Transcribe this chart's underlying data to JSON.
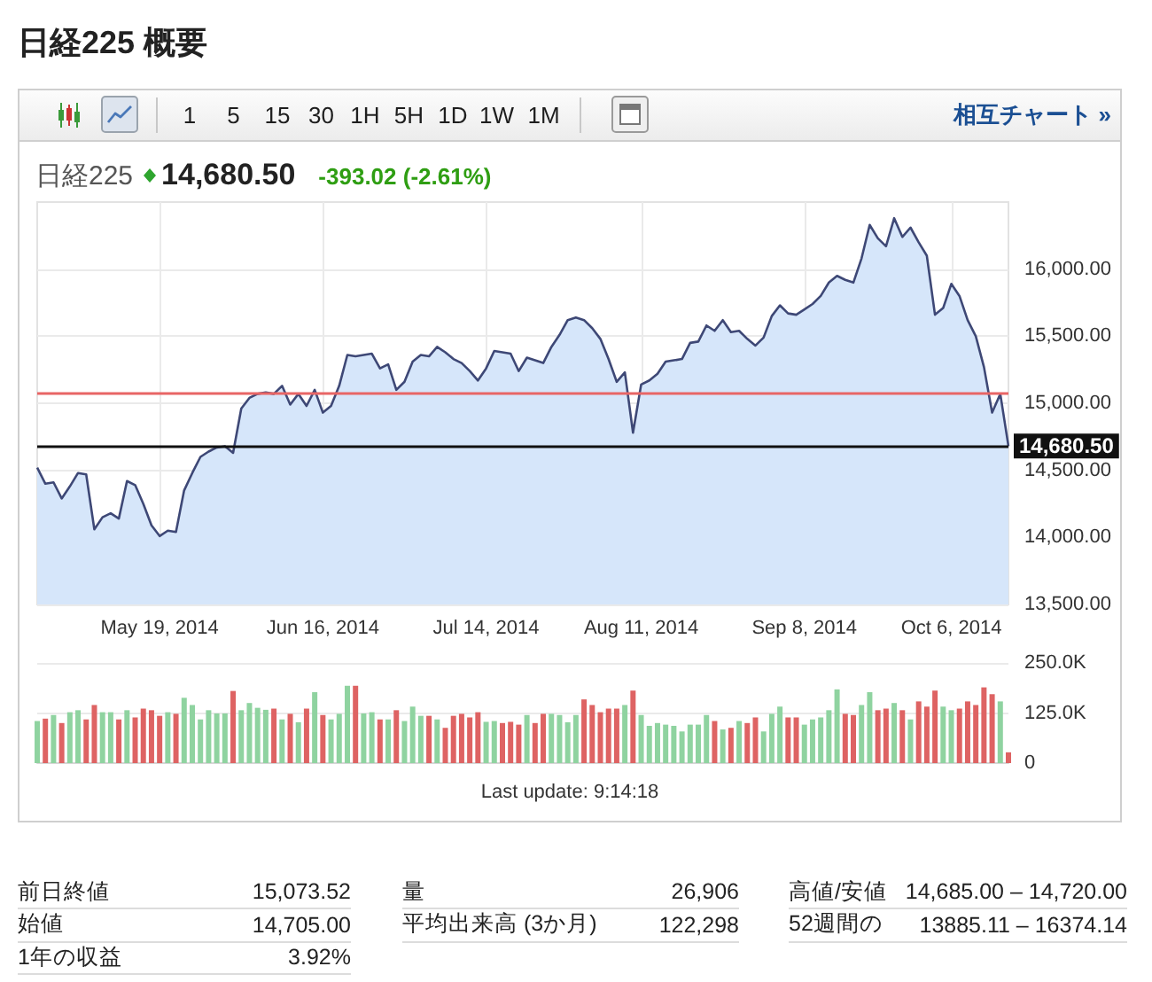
{
  "chart_data": [
    {
      "type": "other",
      "title": "日経225 概要",
      "annotations": [
        "1 5 15 30 1H 5H 1D 1W 1M",
        "相互チャート »"
      ]
    },
    {
      "type": "area",
      "title": "日経225",
      "annotations": [
        "14,680.50",
        "-393.02 (-2.61%)"
      ],
      "categories": [
        null,
        null,
        null,
        null,
        null,
        null,
        null,
        null,
        null,
        null,
        null,
        null,
        null,
        null,
        null,
        "May 19, 2014",
        null,
        null,
        null,
        null,
        null,
        null,
        null,
        null,
        null,
        null,
        null,
        null,
        null,
        null,
        null,
        null,
        null,
        null,
        null,
        "Jun 16, 2014",
        null,
        null,
        null,
        null,
        null,
        null,
        null,
        null,
        null,
        null,
        null,
        null,
        null,
        null,
        null,
        null,
        null,
        null,
        null,
        "Jul 14, 2014",
        null,
        null,
        null,
        null,
        null,
        null,
        null,
        null,
        null,
        null,
        null,
        null,
        null,
        null,
        null,
        null,
        null,
        null,
        "Aug 11, 2014",
        null,
        null,
        null,
        null,
        null,
        null,
        null,
        null,
        null,
        null,
        null,
        null,
        null,
        null,
        null,
        null,
        null,
        null,
        null,
        "Sep 8, 2014",
        null,
        null,
        null,
        null,
        null,
        null,
        null,
        null,
        null,
        null,
        null,
        null,
        null,
        null,
        null,
        null,
        null,
        "Oct 6, 2014",
        null,
        null,
        null,
        null,
        null,
        null,
        null
      ],
      "values": [
        14520,
        14400,
        14410,
        14290,
        14380,
        14480,
        14470,
        14060,
        14150,
        14180,
        14140,
        14420,
        14390,
        14250,
        14090,
        14010,
        14050,
        14040,
        14350,
        14480,
        14600,
        14640,
        14670,
        14680,
        14630,
        14960,
        15040,
        15070,
        15080,
        15070,
        15130,
        14990,
        15070,
        14980,
        15100,
        14930,
        14980,
        15130,
        15360,
        15350,
        15360,
        15370,
        15260,
        15290,
        15100,
        15160,
        15310,
        15360,
        15350,
        15420,
        15380,
        15330,
        15300,
        15240,
        15170,
        15260,
        15390,
        15380,
        15370,
        15240,
        15340,
        15320,
        15300,
        15420,
        15510,
        15620,
        15640,
        15620,
        15560,
        15480,
        15330,
        15160,
        15230,
        14780,
        15140,
        15170,
        15220,
        15310,
        15320,
        15330,
        15450,
        15460,
        15580,
        15540,
        15620,
        15530,
        15540,
        15480,
        15430,
        15490,
        15650,
        15730,
        15670,
        15660,
        15700,
        15740,
        15800,
        15900,
        15950,
        15920,
        15900,
        16080,
        16330,
        16230,
        16170,
        16380,
        16240,
        16310,
        16200,
        16100,
        15660,
        15710,
        15890,
        15800,
        15620,
        15500,
        15270,
        14930,
        15070,
        14680.5
      ],
      "color": "#d6e6fa",
      "ylim": [
        13500,
        16500
      ],
      "yticks": [
        {
          "value": 13500,
          "label": "13,500.00"
        },
        {
          "value": 14000,
          "label": "14,000.00"
        },
        {
          "value": 14500,
          "label": "14,500.00"
        },
        {
          "value": 15000,
          "label": "15,000.00"
        },
        {
          "value": 15500,
          "label": "15,500.00"
        },
        {
          "value": 16000,
          "label": "16,000.00"
        }
      ],
      "grid": true,
      "marker": "none",
      "ref_lines": [
        {
          "axis": "y",
          "value": 15073.52,
          "color": "#e86565"
        },
        {
          "axis": "y",
          "value": 14680.5,
          "label": "14,680.50",
          "color": "#111111"
        }
      ]
    },
    {
      "type": "bar",
      "categories": [
        null,
        null,
        null,
        null,
        null,
        null,
        null,
        null,
        null,
        null,
        null,
        null,
        null,
        null,
        null,
        null,
        null,
        null,
        null,
        null,
        null,
        null,
        null,
        null,
        null,
        null,
        null,
        null,
        null,
        null,
        null,
        null,
        null,
        null,
        null,
        null,
        null,
        null,
        null,
        null,
        null,
        null,
        null,
        null,
        null,
        null,
        null,
        null,
        null,
        null,
        null,
        null,
        null,
        null,
        null,
        null,
        null,
        null,
        null,
        null,
        null,
        null,
        null,
        null,
        null,
        null,
        null,
        null,
        null,
        null,
        null,
        null,
        null,
        null,
        null,
        null,
        null,
        null,
        null,
        null,
        null,
        null,
        null,
        null,
        null,
        null,
        null,
        null,
        null,
        null,
        null,
        null,
        null,
        null,
        null,
        null,
        null,
        null,
        null,
        null,
        null,
        null,
        null,
        null,
        null,
        null,
        null,
        null,
        null,
        null,
        null,
        null,
        null,
        null,
        null,
        null,
        null,
        null,
        null,
        null
      ],
      "values": [
        105000,
        111000,
        120000,
        100000,
        127000,
        132000,
        109000,
        145000,
        127000,
        127000,
        109000,
        132000,
        114000,
        136000,
        132000,
        118000,
        127000,
        123000,
        163000,
        145000,
        109000,
        132000,
        124000,
        124000,
        180000,
        132000,
        150000,
        138000,
        133000,
        136000,
        109000,
        123000,
        102000,
        136000,
        177000,
        120000,
        109000,
        123000,
        193000,
        193000,
        124000,
        127000,
        109000,
        109000,
        132000,
        105000,
        141000,
        118000,
        118000,
        109000,
        88000,
        118000,
        123000,
        114000,
        127000,
        103000,
        105000,
        100000,
        103000,
        96000,
        120000,
        100000,
        123000,
        123000,
        120000,
        102000,
        120000,
        159000,
        145000,
        127000,
        136000,
        136000,
        145000,
        181000,
        120000,
        93000,
        100000,
        96000,
        93000,
        79000,
        96000,
        96000,
        120000,
        105000,
        84000,
        88000,
        105000,
        100000,
        114000,
        79000,
        123000,
        141000,
        114000,
        114000,
        96000,
        109000,
        114000,
        132000,
        184000,
        123000,
        120000,
        145000,
        177000,
        132000,
        136000,
        150000,
        132000,
        109000,
        154000,
        141000,
        181000,
        141000,
        132000,
        136000,
        154000,
        145000,
        189000,
        172000,
        154000,
        26906
      ],
      "colors": [
        "#8fd3a0",
        "#de6363",
        "#8fd3a0",
        "#de6363",
        "#8fd3a0",
        "#8fd3a0",
        "#de6363",
        "#de6363",
        "#8fd3a0",
        "#8fd3a0",
        "#de6363",
        "#8fd3a0",
        "#de6363",
        "#de6363",
        "#de6363",
        "#de6363",
        "#8fd3a0",
        "#de6363",
        "#8fd3a0",
        "#8fd3a0",
        "#8fd3a0",
        "#8fd3a0",
        "#8fd3a0",
        "#8fd3a0",
        "#de6363",
        "#8fd3a0",
        "#8fd3a0",
        "#8fd3a0",
        "#8fd3a0",
        "#de6363",
        "#8fd3a0",
        "#de6363",
        "#8fd3a0",
        "#de6363",
        "#8fd3a0",
        "#de6363",
        "#8fd3a0",
        "#8fd3a0",
        "#8fd3a0",
        "#de6363",
        "#8fd3a0",
        "#8fd3a0",
        "#de6363",
        "#8fd3a0",
        "#de6363",
        "#8fd3a0",
        "#8fd3a0",
        "#8fd3a0",
        "#de6363",
        "#8fd3a0",
        "#de6363",
        "#de6363",
        "#de6363",
        "#de6363",
        "#de6363",
        "#8fd3a0",
        "#8fd3a0",
        "#de6363",
        "#de6363",
        "#de6363",
        "#8fd3a0",
        "#de6363",
        "#de6363",
        "#8fd3a0",
        "#8fd3a0",
        "#8fd3a0",
        "#8fd3a0",
        "#de6363",
        "#de6363",
        "#de6363",
        "#de6363",
        "#de6363",
        "#8fd3a0",
        "#de6363",
        "#8fd3a0",
        "#8fd3a0",
        "#8fd3a0",
        "#8fd3a0",
        "#8fd3a0",
        "#8fd3a0",
        "#8fd3a0",
        "#8fd3a0",
        "#8fd3a0",
        "#de6363",
        "#8fd3a0",
        "#de6363",
        "#8fd3a0",
        "#de6363",
        "#de6363",
        "#8fd3a0",
        "#8fd3a0",
        "#8fd3a0",
        "#de6363",
        "#de6363",
        "#8fd3a0",
        "#8fd3a0",
        "#8fd3a0",
        "#8fd3a0",
        "#8fd3a0",
        "#de6363",
        "#de6363",
        "#8fd3a0",
        "#8fd3a0",
        "#de6363",
        "#de6363",
        "#8fd3a0",
        "#de6363",
        "#8fd3a0",
        "#de6363",
        "#de6363",
        "#de6363",
        "#8fd3a0",
        "#8fd3a0",
        "#de6363",
        "#de6363",
        "#de6363",
        "#de6363",
        "#de6363",
        "#8fd3a0",
        "#de6363"
      ],
      "ylim": [
        0,
        250000
      ],
      "yticks": [
        0,
        {
          "value": 125000,
          "label": "125.0K"
        },
        {
          "value": 250000,
          "label": "250.0K"
        }
      ],
      "grid": "y",
      "tick_labels": "y",
      "annotations": [
        "Last update: 9:14:18"
      ]
    },
    {
      "type": "other",
      "annotations": [
        "前日終値",
        "15,073.52",
        "始値",
        "14,705.00",
        "1年の収益",
        "3.92%",
        "量",
        "26,906",
        "平均出来高 (3か月)",
        "122,298",
        "高値/安値",
        "14,685.00 – 14,720.00",
        "52週間の",
        "13885.11 – 16374.14"
      ]
    }
  ]
}
